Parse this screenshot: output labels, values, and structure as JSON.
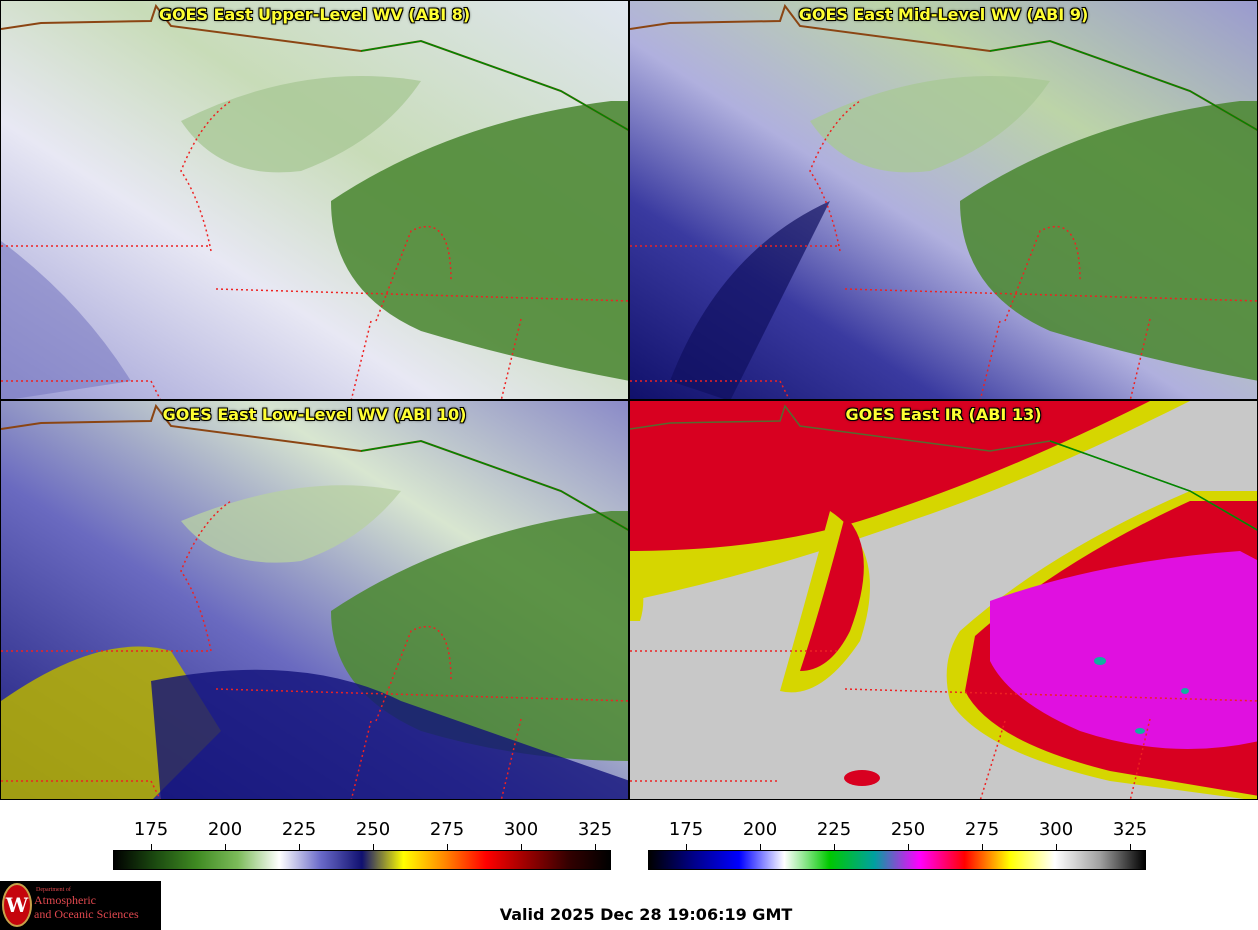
{
  "panels": [
    {
      "title": "GOES East Upper-Level WV (ABI 8)",
      "product": "upper-wv"
    },
    {
      "title": "GOES East Mid-Level WV (ABI 9)",
      "product": "mid-wv"
    },
    {
      "title": "GOES East Low-Level WV (ABI 10)",
      "product": "low-wv"
    },
    {
      "title": "GOES East IR (ABI 13)",
      "product": "ir"
    }
  ],
  "colorbars": [
    {
      "name": "water-vapor",
      "ticks": [
        "175",
        "200",
        "225",
        "250",
        "275",
        "300",
        "325"
      ],
      "colors": [
        "#000000",
        "#1b4a10",
        "#3f8a22",
        "#7cbb5a",
        "#ffffff",
        "#6a6ac8",
        "#101070",
        "#ffff00",
        "#ff8800",
        "#ff0000",
        "#990000",
        "#330000",
        "#000000"
      ]
    },
    {
      "name": "infrared",
      "ticks": [
        "175",
        "200",
        "225",
        "250",
        "275",
        "300",
        "325"
      ],
      "colors": [
        "#000000",
        "#00008a",
        "#0000ff",
        "#ffffff",
        "#00c800",
        "#00a0a0",
        "#ff00ff",
        "#ff0000",
        "#ffff00",
        "#ffffff",
        "#a0a0a0",
        "#000000"
      ]
    }
  ],
  "logo": {
    "line1": "Department of",
    "line2": "Atmospheric",
    "line3": "and Oceanic Sciences",
    "seal_letter": "W"
  },
  "valid_time": "Valid 2025 Dec 28 19:06:19 GMT"
}
